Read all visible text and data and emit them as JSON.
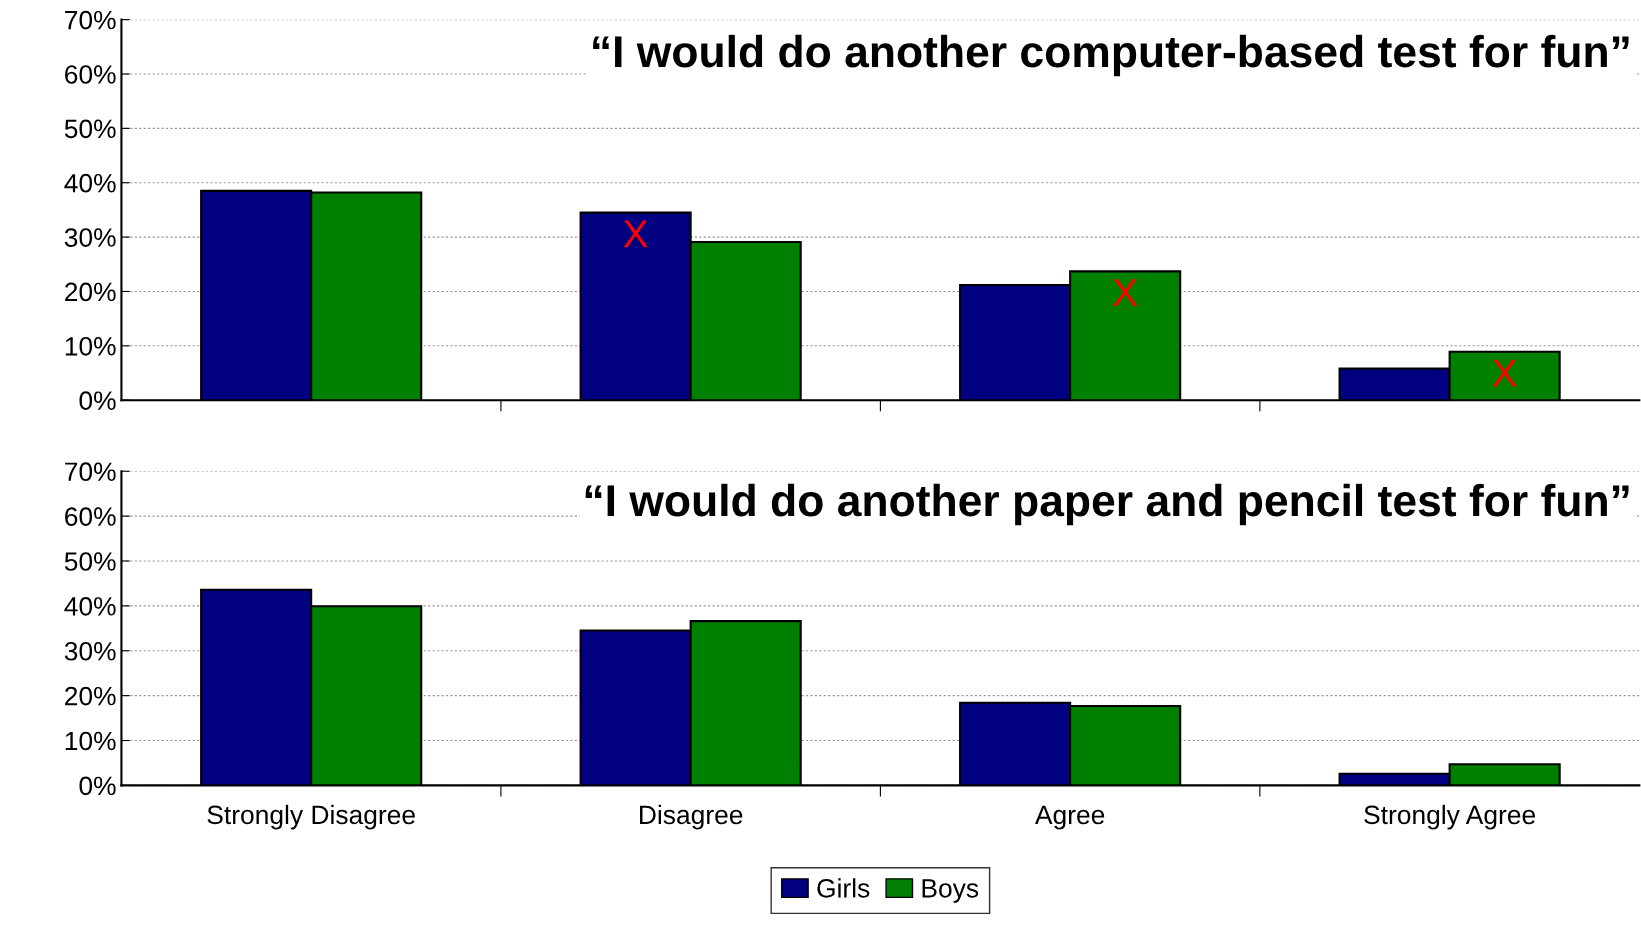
{
  "chart_data": [
    {
      "type": "bar",
      "title": "“I would do another computer-based test for fun”",
      "categories": [
        null,
        null,
        null,
        null
      ],
      "series": [
        {
          "color": "#000080",
          "values": [
            38.5,
            34.5,
            21.2,
            5.8
          ],
          "value_labels": [
            null,
            "X",
            null,
            null
          ]
        },
        {
          "color": "#008000",
          "values": [
            38.2,
            29.1,
            23.7,
            8.9
          ],
          "value_labels": [
            null,
            null,
            "X",
            "X"
          ]
        }
      ],
      "ylim": [
        0,
        70
      ],
      "yticks": [
        {
          "value": 0,
          "label": "0%"
        },
        {
          "value": 10,
          "label": "10%"
        },
        {
          "value": 20,
          "label": "20%"
        },
        {
          "value": 30,
          "label": "30%"
        },
        {
          "value": 40,
          "label": "40%"
        },
        {
          "value": 50,
          "label": "50%"
        },
        {
          "value": 60,
          "label": "60%"
        },
        {
          "value": 70,
          "label": "70%"
        }
      ],
      "grid": "y",
      "tick_labels": "y"
    },
    {
      "type": "bar",
      "title": "“I would do another paper and pencil test for fun”",
      "categories": [
        "Strongly Disagree",
        "Disagree",
        "Agree",
        "Strongly Agree"
      ],
      "series": [
        {
          "name": "Girls",
          "color": "#000080",
          "values": [
            43.6,
            34.5,
            18.4,
            2.6
          ]
        },
        {
          "name": "Boys",
          "color": "#008000",
          "values": [
            39.9,
            36.6,
            17.7,
            4.7
          ]
        }
      ],
      "ylim": [
        0,
        70
      ],
      "yticks": [
        {
          "value": 0,
          "label": "0%"
        },
        {
          "value": 10,
          "label": "10%"
        },
        {
          "value": 20,
          "label": "20%"
        },
        {
          "value": 30,
          "label": "30%"
        },
        {
          "value": 40,
          "label": "40%"
        },
        {
          "value": 50,
          "label": "50%"
        },
        {
          "value": 60,
          "label": "60%"
        },
        {
          "value": 70,
          "label": "70%"
        }
      ],
      "grid": "y",
      "legend": "bottom"
    }
  ]
}
